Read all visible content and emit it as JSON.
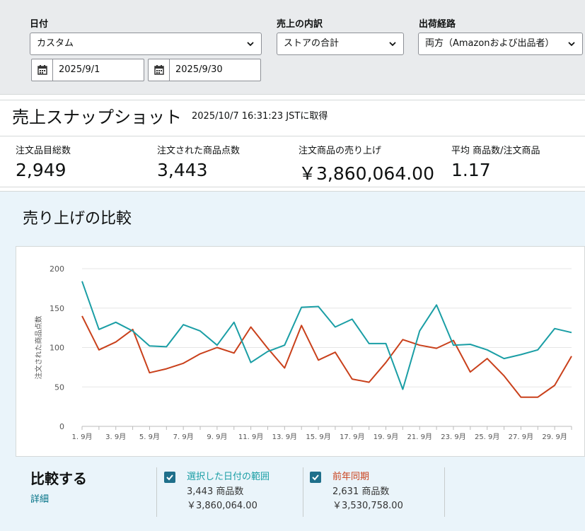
{
  "filters": {
    "date_label": "日付",
    "date_range_select": "カスタム",
    "start_date": "2025/9/1",
    "end_date": "2025/9/30",
    "breakdown_label": "売上の内訳",
    "breakdown_select": "ストアの合計",
    "channel_label": "出荷経路",
    "channel_select": "両方（Amazonおよび出品者）"
  },
  "snapshot": {
    "title": "売上スナップショット",
    "timestamp": "2025/10/7 16:31:23 JSTに取得",
    "metrics": [
      {
        "label": "注文品目総数",
        "value": "2,949"
      },
      {
        "label": "注文された商品点数",
        "value": "3,443"
      },
      {
        "label": "注文商品の売り上げ",
        "value": "￥3,860,064.00"
      },
      {
        "label": "平均 商品数/注文商品",
        "value": "1.17"
      }
    ]
  },
  "comparison": {
    "title": "売り上げの比較",
    "compare_heading": "比較する",
    "details_link": "詳細",
    "legend": [
      {
        "name": "選択した日付の範囲",
        "units": "3,443 商品数",
        "sales": "￥3,860,064.00",
        "color": "#1a9ea5"
      },
      {
        "name": "前年同期",
        "units": "2,631 商品数",
        "sales": "￥3,530,758.00",
        "color": "#c9401b"
      }
    ]
  },
  "chart_data": {
    "type": "line",
    "ylabel": "注文された商品点数",
    "ylim": [
      0,
      200
    ],
    "yticks": [
      0,
      50,
      100,
      150,
      200
    ],
    "x": [
      "1. 9月",
      "2. 9月",
      "3. 9月",
      "4. 9月",
      "5. 9月",
      "6. 9月",
      "7. 9月",
      "8. 9月",
      "9. 9月",
      "10. 9月",
      "11. 9月",
      "12. 9月",
      "13. 9月",
      "14. 9月",
      "15. 9月",
      "16. 9月",
      "17. 9月",
      "18. 9月",
      "19. 9月",
      "20. 9月",
      "21. 9月",
      "22. 9月",
      "23. 9月",
      "24. 9月",
      "25. 9月",
      "26. 9月",
      "27. 9月",
      "28. 9月",
      "29. 9月",
      "30. 9月"
    ],
    "xtick_labels": [
      "1. 9月",
      "3. 9月",
      "5. 9月",
      "7. 9月",
      "9. 9月",
      "11. 9月",
      "13. 9月",
      "15. 9月",
      "17. 9月",
      "19. 9月",
      "21. 9月",
      "23. 9月",
      "25. 9月",
      "27. 9月",
      "29. 9月"
    ],
    "grid": true,
    "series": [
      {
        "name": "選択した日付の範囲",
        "color": "#1a9ea5",
        "values": [
          184,
          123,
          132,
          121,
          102,
          101,
          129,
          121,
          103,
          132,
          81,
          95,
          103,
          151,
          152,
          126,
          136,
          105,
          105,
          47,
          121,
          154,
          103,
          104,
          97,
          86,
          91,
          97,
          124,
          119
        ]
      },
      {
        "name": "前年同期",
        "color": "#c9401b",
        "values": [
          140,
          97,
          107,
          123,
          68,
          73,
          80,
          92,
          100,
          93,
          126,
          99,
          74,
          128,
          84,
          94,
          60,
          56,
          81,
          110,
          103,
          99,
          109,
          69,
          86,
          64,
          37,
          37,
          52,
          89
        ]
      }
    ]
  }
}
